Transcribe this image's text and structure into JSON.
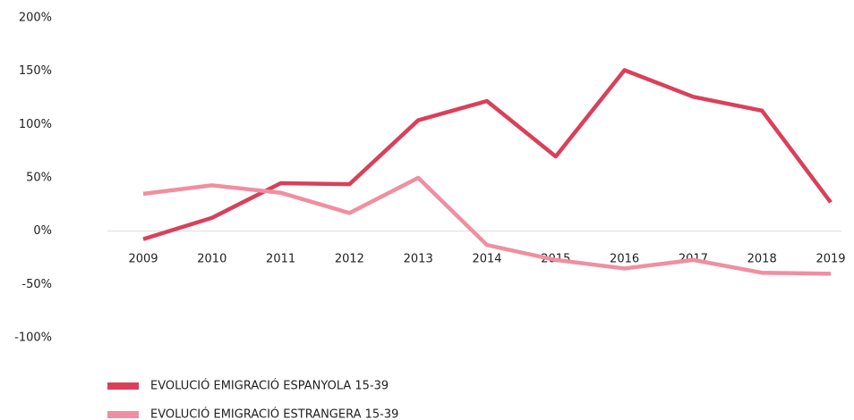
{
  "chart_data": {
    "type": "line",
    "categories": [
      "2009",
      "2010",
      "2011",
      "2012",
      "2013",
      "2014",
      "2015",
      "2016",
      "2017",
      "2018",
      "2019"
    ],
    "series": [
      {
        "name": "EVOLUCIÓ EMIGRACIÓ ESPANYOLA 15-39",
        "color": "#d9405a",
        "values": [
          -7.5,
          12.5,
          45,
          44,
          104,
          122,
          70,
          151,
          126,
          113,
          27
        ]
      },
      {
        "name": "EVOLUCIÓ EMIGRACIÓ ESTRANGERA 15-39",
        "color": "#ef8fa0",
        "values": [
          35,
          43,
          36,
          17,
          50,
          -13,
          -27,
          -35,
          -27,
          -39,
          -40
        ]
      }
    ],
    "ylim": [
      -100,
      200
    ],
    "yticks": [
      {
        "value": 200,
        "label": "200%"
      },
      {
        "value": 150,
        "label": "150%"
      },
      {
        "value": 100,
        "label": "100%"
      },
      {
        "value": 50,
        "label": "50%"
      },
      {
        "value": 0,
        "label": "0%"
      },
      {
        "value": -50,
        "label": "-50%"
      },
      {
        "value": -100,
        "label": "-100%"
      }
    ],
    "grid": false
  }
}
